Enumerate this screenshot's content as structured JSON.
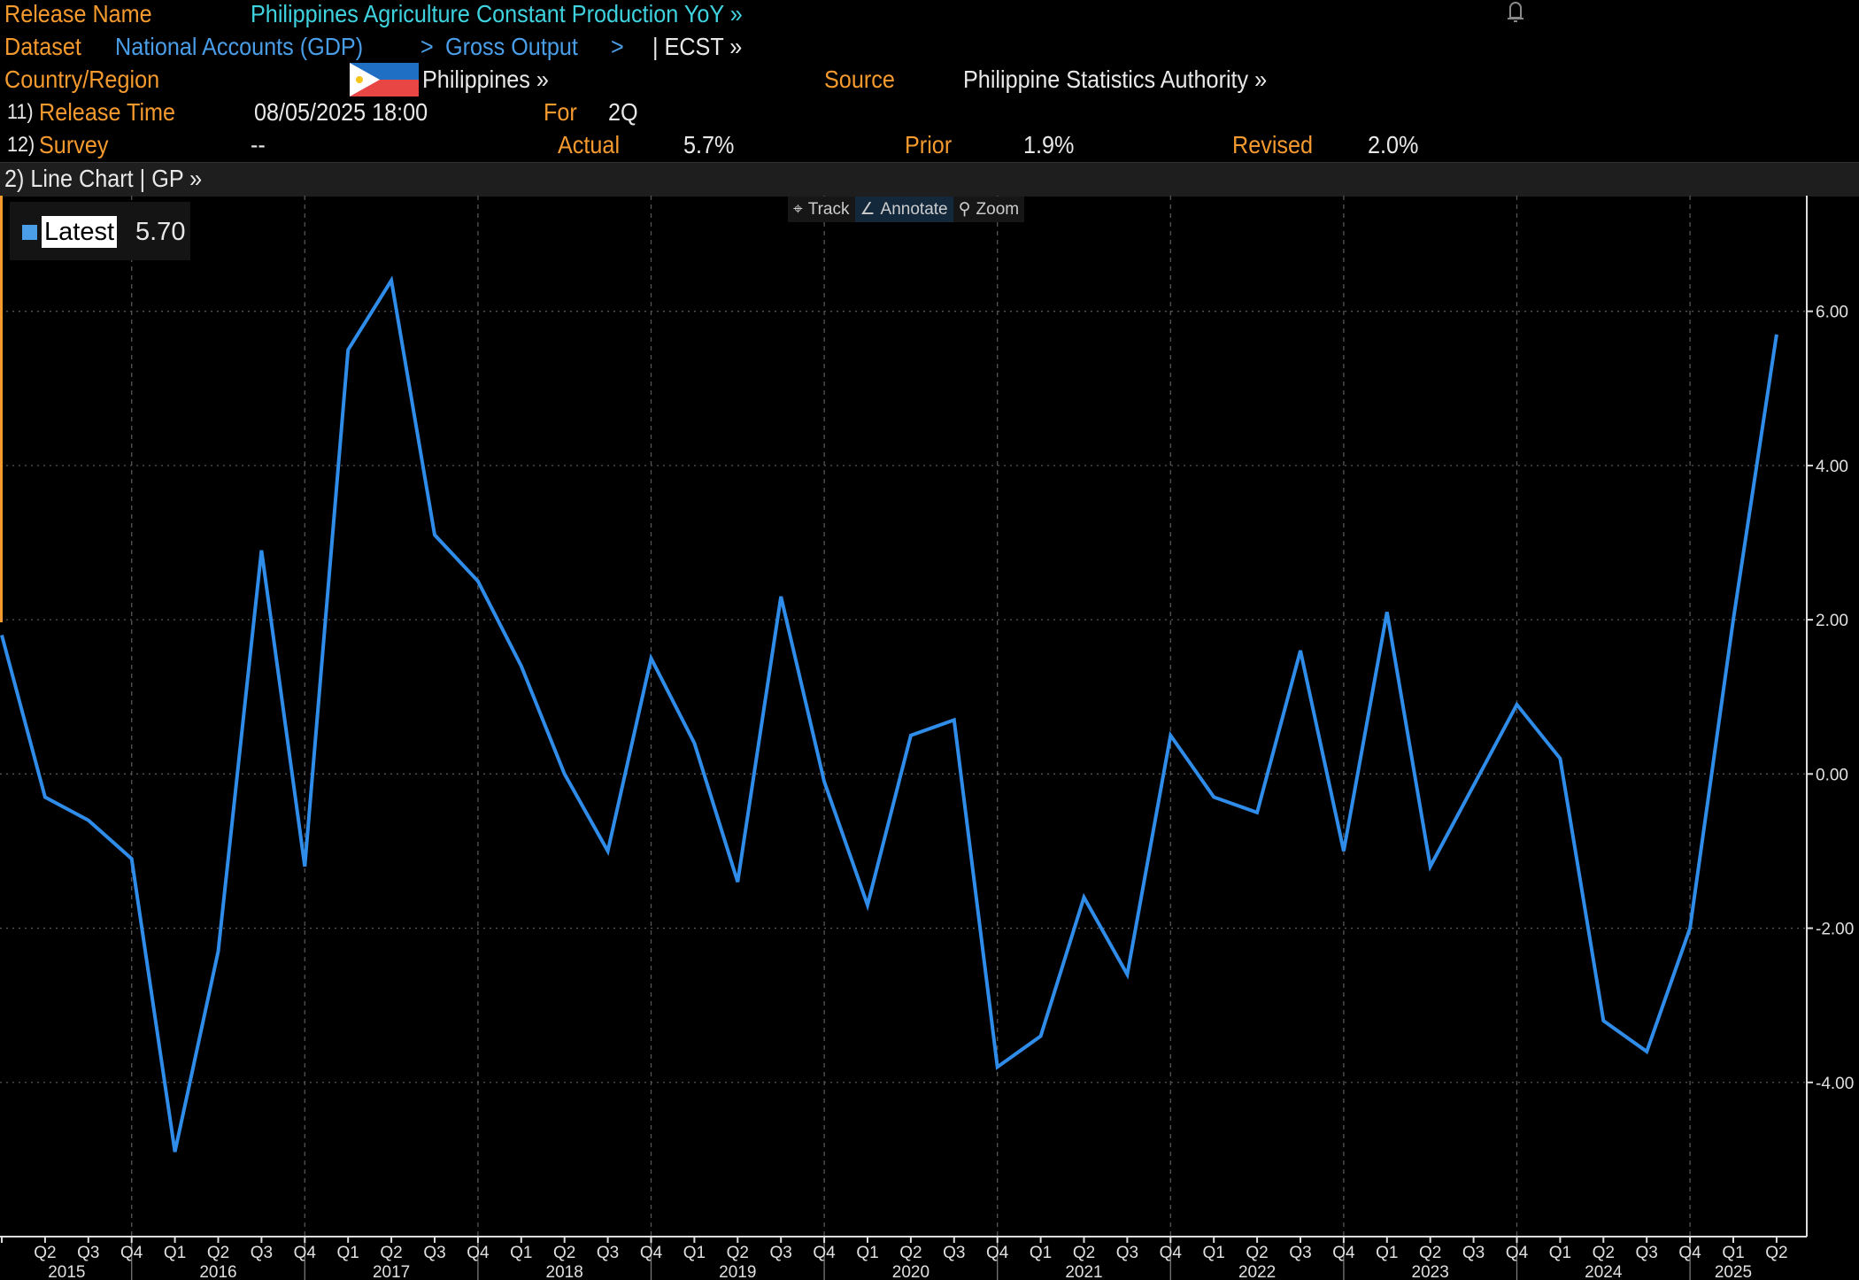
{
  "header": {
    "release_name_label": "Release Name",
    "release_name": "Philippines Agriculture Constant Production YoY »",
    "dataset_label": "Dataset",
    "dataset_path_1": "National Accounts (GDP)",
    "dataset_sep_1": ">",
    "dataset_path_2": "Gross Output",
    "dataset_sep_2": ">",
    "dataset_ticker": "| ECST »",
    "country_label": "Country/Region",
    "country": "Philippines »",
    "source_label": "Source",
    "source": "Philippine Statistics Authority »",
    "release_time_num": "11)",
    "release_time_label": "Release Time",
    "release_time": "08/05/2025 18:00",
    "for_label": "For",
    "for_value": "2Q",
    "survey_num": "12)",
    "survey_label": "Survey",
    "survey": "--",
    "actual_label": "Actual",
    "actual": "5.7%",
    "prior_label": "Prior",
    "prior": "1.9%",
    "revised_label": "Revised",
    "revised": "2.0%"
  },
  "chart_bar": {
    "title": "2) Line Chart | GP »"
  },
  "toolbar": {
    "track": "Track",
    "annotate": "Annotate",
    "zoom": "Zoom"
  },
  "legend": {
    "label": "Latest",
    "value": "5.70"
  },
  "colors": {
    "orange": "#f59a2e",
    "line": "#2f8ce8",
    "cyan": "#3fd3e0",
    "link": "#4a9ee8"
  },
  "chart_data": {
    "type": "line",
    "title": "Philippines Agriculture Constant Production YoY",
    "xlabel": "",
    "ylabel": "",
    "ylim": [
      -6,
      7.5
    ],
    "yticks": [
      -4,
      -2,
      0,
      2,
      4,
      6
    ],
    "ytick_labels": [
      "-4.00",
      "-2.00",
      "0.00",
      "2.00",
      "4.00",
      "6.00"
    ],
    "grid": true,
    "legend_position": "top-left",
    "quarter_labels": [
      "Q1",
      "Q2",
      "Q3",
      "Q4",
      "Q1",
      "Q2",
      "Q3",
      "Q4",
      "Q1",
      "Q2",
      "Q3",
      "Q4",
      "Q1",
      "Q2",
      "Q3",
      "Q4",
      "Q1",
      "Q2",
      "Q3",
      "Q4",
      "Q1",
      "Q2",
      "Q3",
      "Q4",
      "Q1",
      "Q2",
      "Q3",
      "Q4",
      "Q1",
      "Q2",
      "Q3",
      "Q4",
      "Q1",
      "Q2",
      "Q3",
      "Q4",
      "Q1",
      "Q2",
      "Q3",
      "Q4",
      "Q1",
      "Q2"
    ],
    "years": [
      "2015",
      "2016",
      "2017",
      "2018",
      "2019",
      "2020",
      "2021",
      "2022",
      "2023",
      "2024",
      "2025"
    ],
    "series": [
      {
        "name": "Latest",
        "values": [
          1.8,
          -0.3,
          -0.6,
          -1.1,
          -4.9,
          -2.3,
          2.9,
          -1.2,
          5.5,
          6.4,
          3.1,
          2.5,
          1.4,
          0.0,
          -1.0,
          1.5,
          0.4,
          -1.4,
          2.3,
          -0.1,
          -1.7,
          0.5,
          0.7,
          -3.8,
          -3.4,
          -1.6,
          -2.6,
          0.5,
          -0.3,
          -0.5,
          1.6,
          -1.0,
          2.1,
          -1.2,
          -0.15,
          0.9,
          0.2,
          -3.2,
          -3.6,
          -2.0,
          2.0,
          5.7
        ]
      }
    ]
  }
}
